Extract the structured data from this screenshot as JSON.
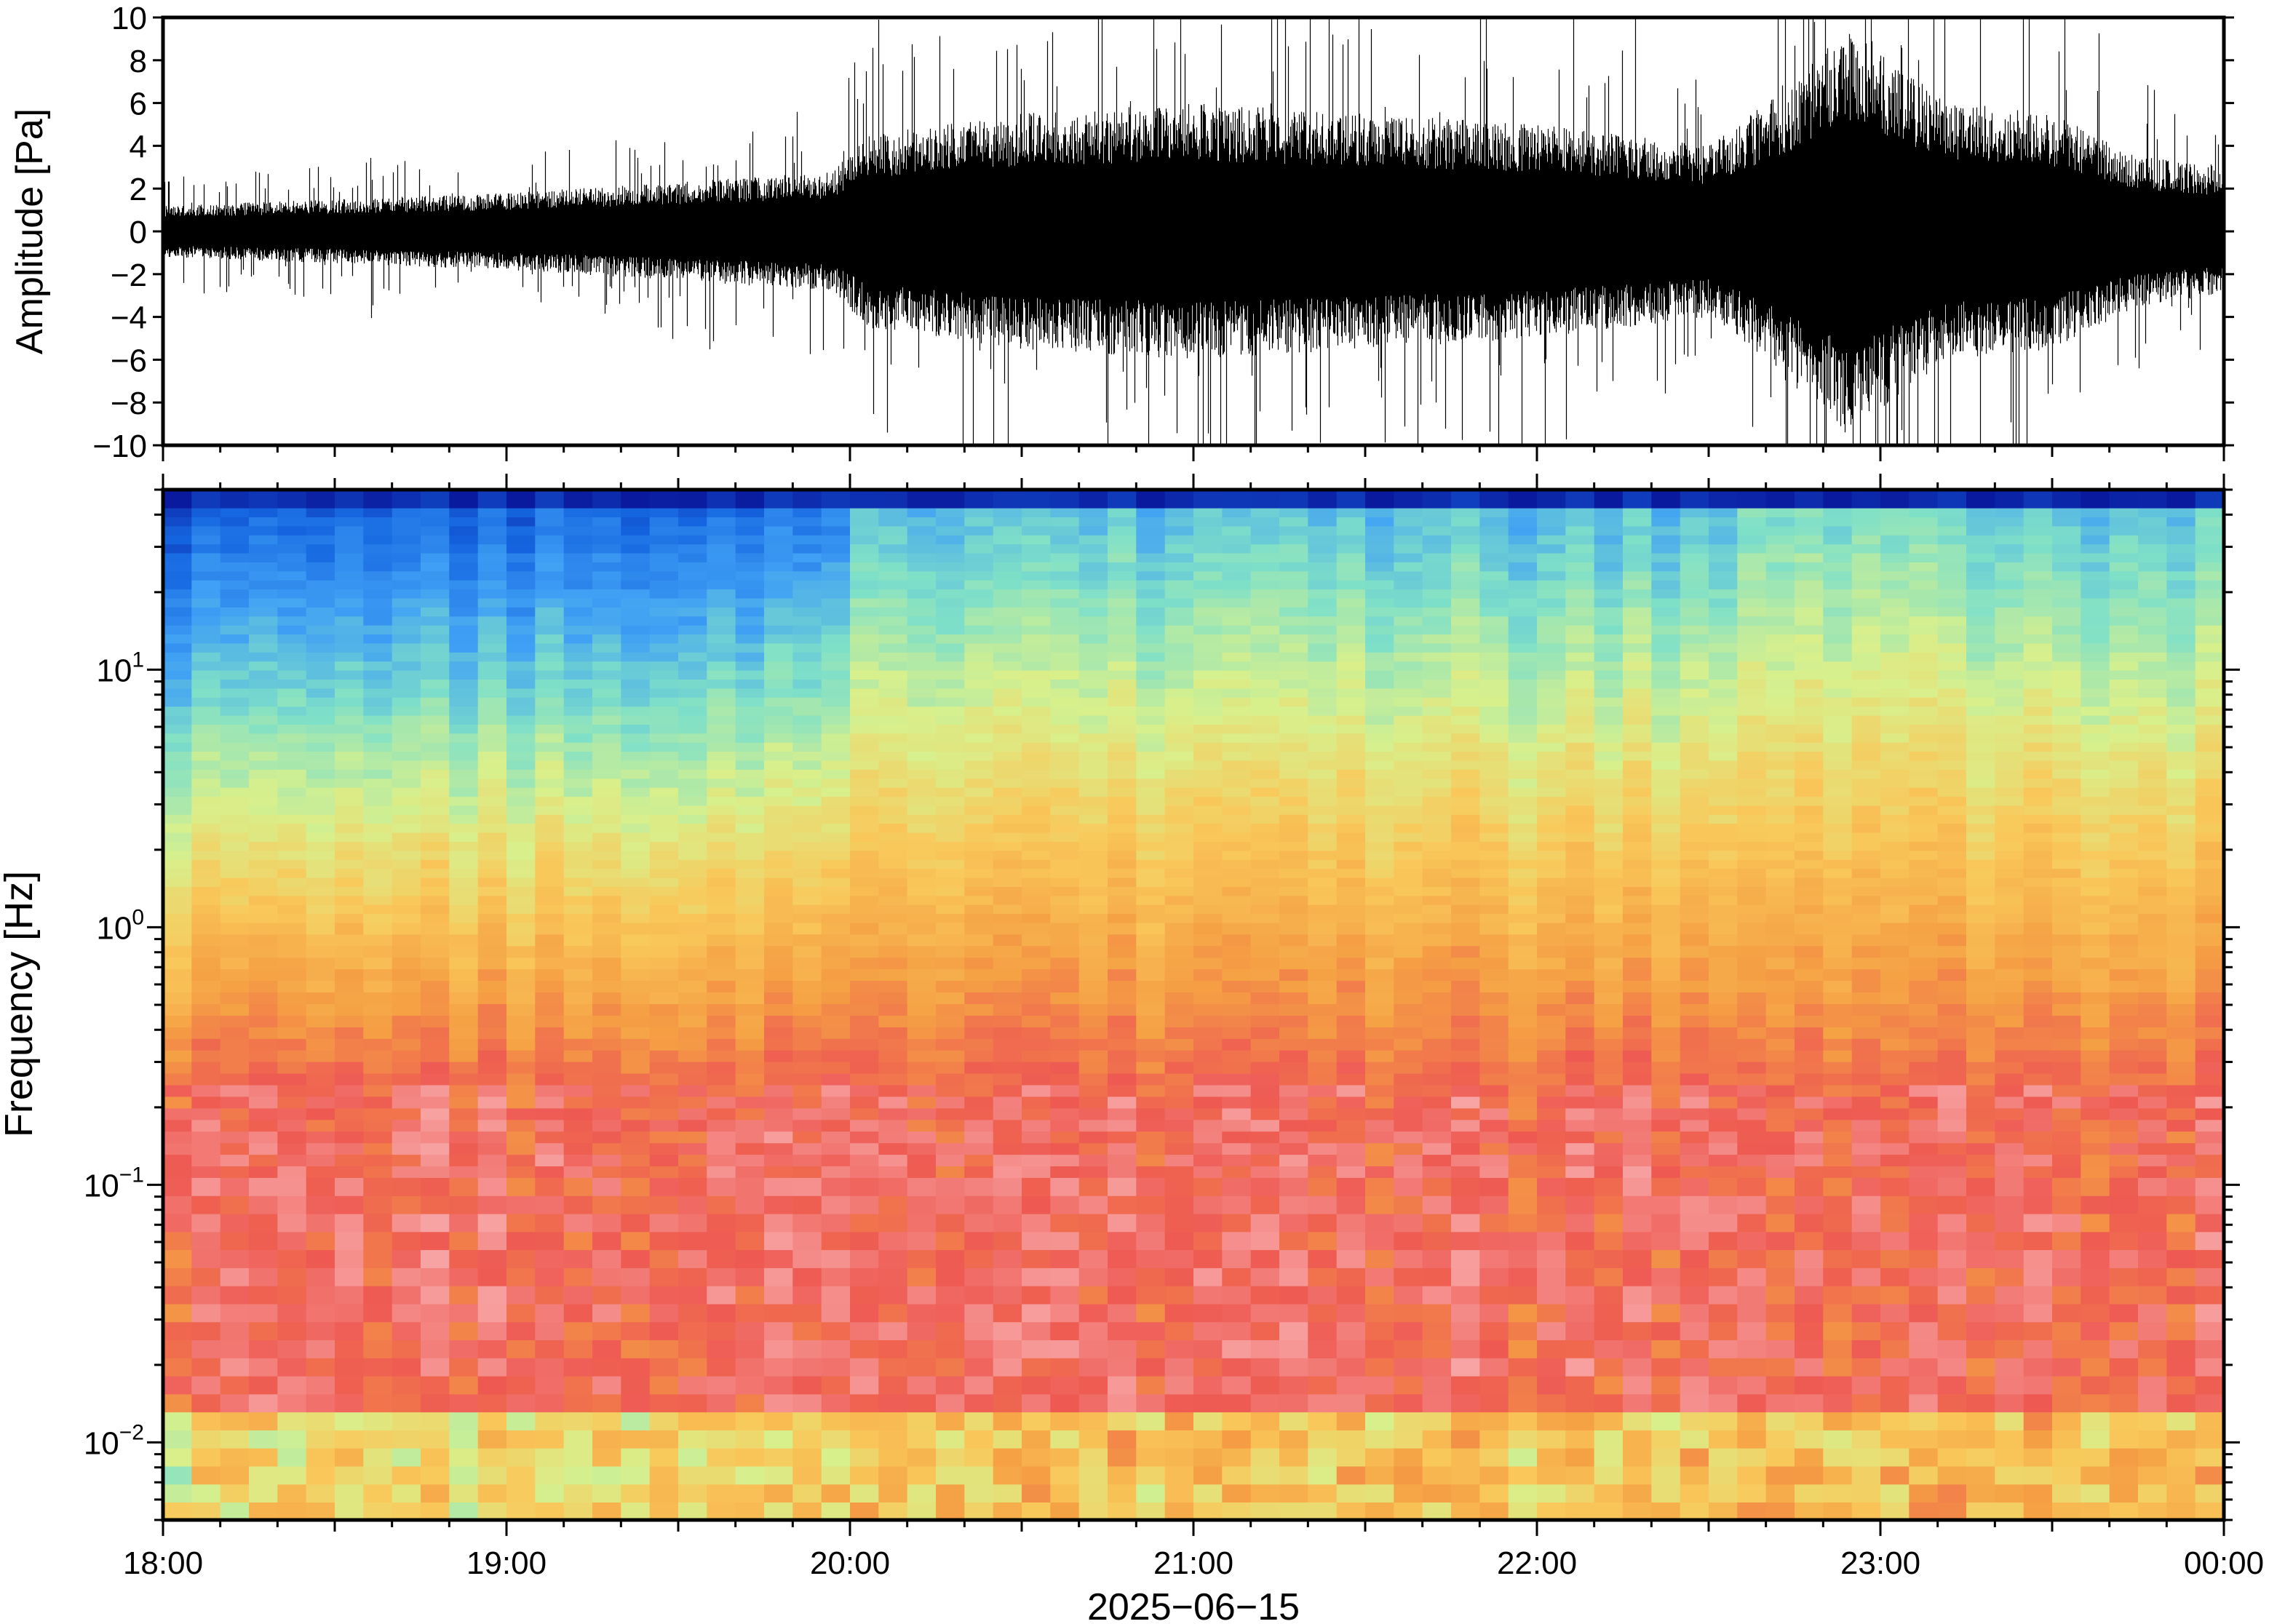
{
  "chart_data": [
    {
      "type": "line",
      "panel": "waveform",
      "ylabel": "Amplitude [Pa]",
      "ylim": [
        -10,
        10
      ],
      "yticks": [
        -10,
        -8,
        -6,
        -4,
        -2,
        0,
        2,
        4,
        6,
        8,
        10
      ],
      "ytick_labels": [
        "−10",
        "−8",
        "−6",
        "−4",
        "−2",
        "0",
        "2",
        "4",
        "6",
        "8",
        "10"
      ],
      "x_hours": [
        18,
        18.5,
        19,
        19.5,
        19.95,
        20.05,
        20.5,
        21,
        21.5,
        22,
        22.5,
        22.75,
        22.9,
        23.2,
        23.5,
        23.75,
        24
      ],
      "envelope_pa": [
        1.2,
        1.5,
        1.8,
        2.3,
        2.8,
        4.5,
        5.5,
        6.0,
        5.5,
        5.0,
        4.0,
        7.0,
        9.5,
        6.0,
        5.5,
        3.5,
        3.0
      ],
      "grid": false
    },
    {
      "type": "heatmap",
      "panel": "spectrogram",
      "ylabel": "Frequency [Hz]",
      "yscale": "log",
      "ylim_hz": [
        0.005,
        50
      ],
      "yticks_hz": [
        0.01,
        0.1,
        1,
        10
      ],
      "ytick_labels": [
        {
          "base": "10",
          "exp": "−2"
        },
        {
          "base": "10",
          "exp": "−1"
        },
        {
          "base": "10",
          "exp": "0"
        },
        {
          "base": "10",
          "exp": "1"
        }
      ],
      "xlabel": "2025−06−15",
      "x_ticks_hours": [
        18,
        19,
        20,
        21,
        22,
        23,
        24
      ],
      "x_tick_labels": [
        "18:00",
        "19:00",
        "20:00",
        "21:00",
        "22:00",
        "23:00",
        "00:00"
      ],
      "colormap": [
        "#0a1a9e",
        "#1565e0",
        "#3fa0f5",
        "#7fe0c8",
        "#d8f08c",
        "#f9c85a",
        "#f5a044",
        "#ee5a52",
        "#f8a8a8"
      ],
      "grid": false
    }
  ]
}
